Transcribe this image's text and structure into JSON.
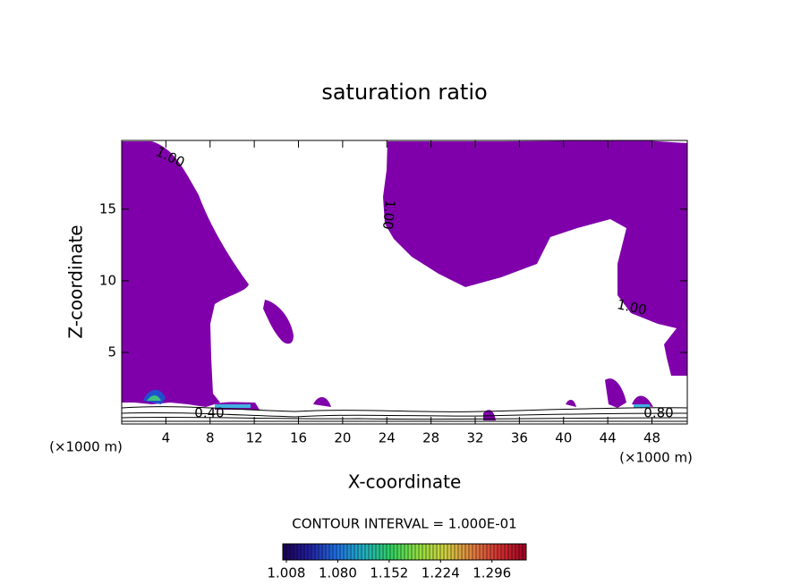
{
  "chart_data": {
    "type": "contour",
    "title": "saturation ratio",
    "xlabel": "X-coordinate",
    "ylabel": "Z-coordinate",
    "x_unit": "(×1000 m)",
    "xlim": [
      0,
      51.2
    ],
    "xticks": [
      4,
      8,
      12,
      16,
      20,
      24,
      28,
      32,
      36,
      40,
      44,
      48
    ],
    "ylim": [
      0,
      19.8
    ],
    "yticks": [
      5,
      10,
      15
    ],
    "levels": [
      {
        "value": 1,
        "label": "1.00"
      },
      {
        "value": 0.8,
        "label": "0.80"
      },
      {
        "value": 0.4,
        "label": "0.40"
      }
    ],
    "fill_color": "#7f00aa",
    "annotation": "CONTOUR INTERVAL = 1.000E-01",
    "colorbar": {
      "lim": [
        1.003,
        1.344
      ],
      "ticks": [
        {
          "value": 1.008,
          "label": "1.008"
        },
        {
          "value": 1.08,
          "label": "1.080"
        },
        {
          "value": 1.152,
          "label": "1.152"
        },
        {
          "value": 1.224,
          "label": "1.224"
        },
        {
          "value": 1.296,
          "label": "1.296"
        }
      ],
      "colors": [
        "#1a0050",
        "#2020a0",
        "#2070e0",
        "#20b0c0",
        "#30d060",
        "#90e040",
        "#d0d040",
        "#e08040",
        "#d03030",
        "#a00020"
      ]
    }
  }
}
